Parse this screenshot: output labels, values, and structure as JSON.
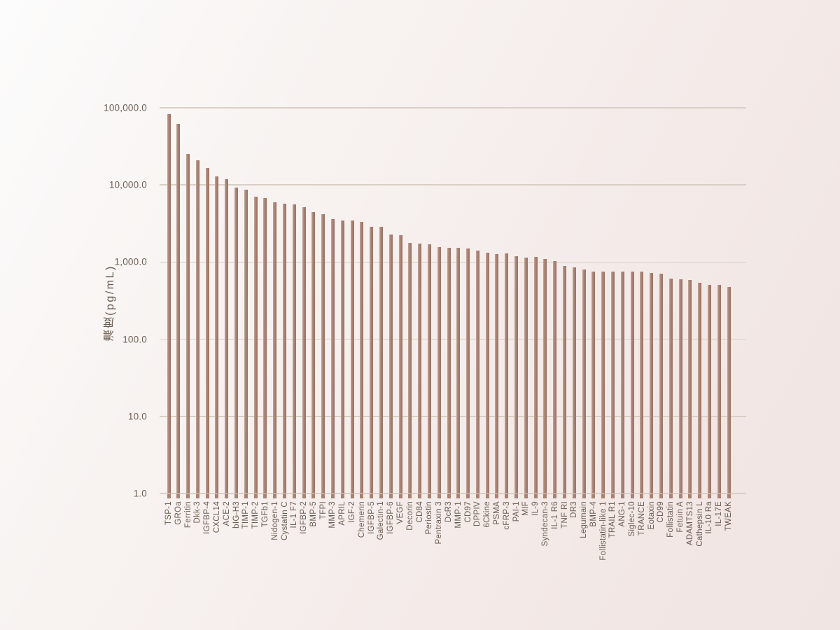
{
  "colors": {
    "bar_main": "#a88273",
    "bar_light_edge": "#bfa79a",
    "bar_dark_edge": "#9b7264",
    "gridline": "#d9cfc6",
    "text": "#6a5b4f",
    "background_top_left": "#fcfcfc",
    "background_bottom_right": "#f1e5e4"
  },
  "chart_data": {
    "type": "bar",
    "title": "",
    "xlabel": "",
    "ylabel": "濃度(pg/mL)",
    "y_scale": "log",
    "ylim": [
      1,
      100000
    ],
    "grid": true,
    "legend": "none",
    "y_ticks": [
      {
        "label": "100,000.0",
        "value": 100000
      },
      {
        "label": "10,000.0",
        "value": 10000
      },
      {
        "label": "1,000.0",
        "value": 1000
      },
      {
        "label": "100.0",
        "value": 100
      },
      {
        "label": "10.0",
        "value": 10
      },
      {
        "label": "1.0",
        "value": 1
      }
    ],
    "categories": [
      "TSP-1",
      "GROa",
      "Ferritin",
      "Dkk-3",
      "IGFBP-4",
      "CXCL14",
      "ACE-2",
      "bIG-H3",
      "TIMP-1",
      "TIMP-2",
      "TGFb1",
      "Nidogen-1",
      "Cystatin C",
      "IL-1 F7",
      "IGFBP-2",
      "BMP-5",
      "TFPI",
      "MMP-3",
      "APRIL",
      "IGF-2",
      "Chemerin",
      "IGFBP-5",
      "Galectin-1",
      "IGFBP-6",
      "VEGF",
      "Decorin",
      "CD84",
      "Periostin",
      "Pentraxin 3",
      "DcR3",
      "MMP-1",
      "CD97",
      "DPPIV",
      "6Ckine",
      "PSMA",
      "cFRP-3",
      "PAI-1",
      "MIF",
      "IL-9",
      "Syndecan-3",
      "IL-1 R6",
      "TNF RI",
      "DR3",
      "Legumain",
      "BMP-4",
      "Follistatin-like 1",
      "TRAIL R1",
      "ANG-1",
      "Siglec-10",
      "TRANCE",
      "Eotaxin",
      "CD99",
      "Follistatin",
      "Fetuin A",
      "ADAMTS13",
      "Cathepsin L",
      "IL-10 Ra",
      "IL-17E",
      "TWEAK"
    ],
    "values": [
      83000,
      62000,
      25000,
      21000,
      16500,
      13000,
      11900,
      9300,
      8700,
      7100,
      6700,
      5900,
      5700,
      5650,
      5150,
      4400,
      4200,
      3600,
      3470,
      3460,
      3350,
      2880,
      2850,
      2270,
      2230,
      1760,
      1730,
      1700,
      1570,
      1530,
      1520,
      1490,
      1400,
      1330,
      1280,
      1300,
      1190,
      1150,
      1160,
      1090,
      1020,
      890,
      845,
      805,
      760,
      752,
      755,
      750,
      754,
      749,
      725,
      710,
      605,
      600,
      585,
      535,
      505,
      508,
      480
    ]
  }
}
